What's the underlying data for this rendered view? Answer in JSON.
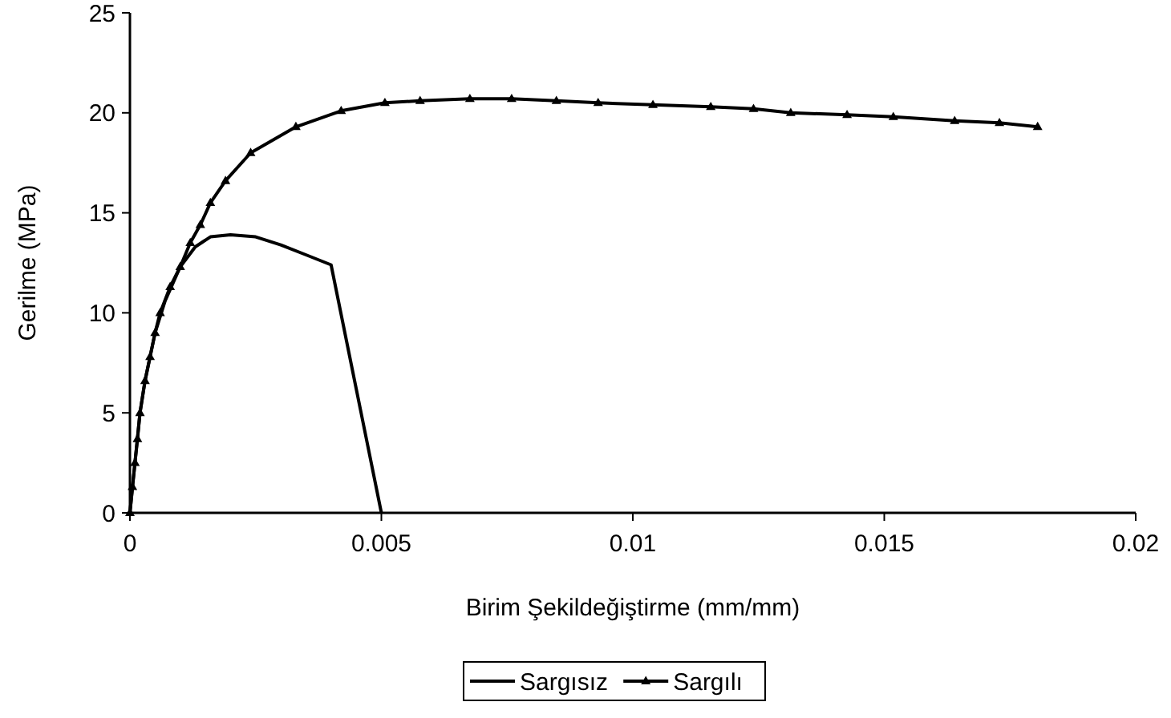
{
  "chart_data": {
    "type": "line",
    "xlabel": "Birim Şekildeğiştirme (mm/mm)",
    "ylabel": "Gerilme (MPa)",
    "xlim": [
      0,
      0.02
    ],
    "xticks": [
      0,
      0.005,
      0.01,
      0.015,
      0.02
    ],
    "ylim": [
      0,
      25
    ],
    "yticks": [
      0,
      5,
      10,
      15,
      20,
      25
    ],
    "grid": false,
    "legend": "bottom",
    "series": [
      {
        "name": "Sargısız",
        "color": "#000000",
        "marker": "none",
        "x": [
          0,
          0.0001,
          0.0002,
          0.0003,
          0.0005,
          0.0007,
          0.001,
          0.0013,
          0.0016,
          0.002,
          0.0025,
          0.003,
          0.0035,
          0.004,
          0.0045,
          0.005
        ],
        "values": [
          0,
          2.5,
          5,
          6.6,
          9,
          10.6,
          12.3,
          13.3,
          13.8,
          13.9,
          13.8,
          13.4,
          12.9,
          12.4,
          6.2,
          0
        ]
      },
      {
        "name": "Sargılı",
        "color": "#000000",
        "marker": "triangle",
        "x": [
          0,
          5e-05,
          0.0001,
          0.00015,
          0.0002,
          0.0003,
          0.0004,
          0.0005,
          0.0006,
          0.0008,
          0.001,
          0.0012,
          0.0014,
          0.0016,
          0.0019,
          0.0024,
          0.0033,
          0.0042,
          0.00507,
          0.00577,
          0.00676,
          0.00759,
          0.00848,
          0.00931,
          0.0104,
          0.01155,
          0.0124,
          0.01314,
          0.01426,
          0.01518,
          0.0164,
          0.01729,
          0.01805
        ],
        "values": [
          0,
          1.3,
          2.5,
          3.7,
          5,
          6.6,
          7.8,
          9,
          10,
          11.3,
          12.3,
          13.5,
          14.4,
          15.5,
          16.6,
          18,
          19.3,
          20.1,
          20.5,
          20.6,
          20.7,
          20.7,
          20.6,
          20.5,
          20.4,
          20.3,
          20.2,
          20.0,
          19.9,
          19.8,
          19.6,
          19.5,
          19.3
        ]
      }
    ]
  }
}
